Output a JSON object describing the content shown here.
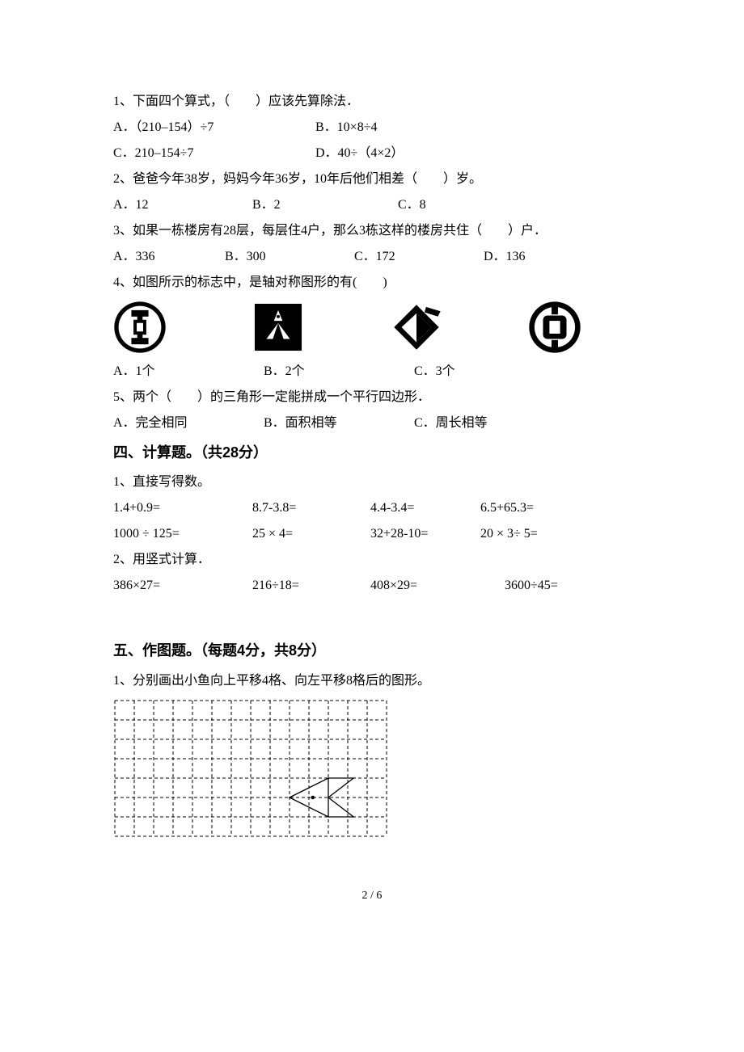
{
  "q1": {
    "stem": "1、下面四个算式，（　　）应该先算除法．",
    "A": "A．（210‒154）÷7",
    "B": "B．10×8÷4",
    "C": "C．210‒154÷7",
    "D": "D．40÷（4×2）"
  },
  "q2": {
    "stem": "2、爸爸今年38岁，妈妈今年36岁，10年后他们相差（　　）岁。",
    "A": "A．12",
    "B": "B．2",
    "C": "C．8"
  },
  "q3": {
    "stem": "3、如果一栋楼房有28层，每层住4户，那么3栋这样的楼房共住（　　）户．",
    "A": "A．336",
    "B": "B．300",
    "C": "C．172",
    "D": "D．136"
  },
  "q4": {
    "stem": "4、如图所示的标志中，是轴对称图形的有(　　)",
    "A": "A．1个",
    "B": "B．2个",
    "C": "C．3个"
  },
  "q5": {
    "stem": "5、两个（　　）的三角形一定能拼成一个平行四边形．",
    "A": "A．完全相同",
    "B": "B．面积相等",
    "C": "C．周长相等"
  },
  "section4": {
    "title": "四、计算题。（共28分）",
    "p1": "1、直接写得数。",
    "r1c1": "1.4+0.9=",
    "r1c2": "8.7-3.8=",
    "r1c3": "4.4-3.4=",
    "r1c4": "6.5+65.3=",
    "r2c1": "1000 ÷ 125=",
    "r2c2": "25 × 4=",
    "r2c3": "32+28-10=",
    "r2c4": "20 × 3÷ 5=",
    "p2": "2、用竖式计算．",
    "r3c1": "386×27=",
    "r3c2": "216÷18=",
    "r3c3": "408×29=",
    "r3c4": "3600÷45="
  },
  "section5": {
    "title": "五、作图题。（每题4分，共8分）",
    "p1": "1、分别画出小鱼向上平移4格、向左平移8格后的图形。"
  },
  "grid": {
    "cols": 14,
    "rows": 7,
    "cell": 24,
    "border_color": "#000000",
    "dash": "4,3",
    "fish": {
      "body": [
        [
          9,
          5
        ],
        [
          11,
          4
        ],
        [
          11,
          6
        ]
      ],
      "tail": [
        [
          11,
          4
        ],
        [
          12.3,
          4
        ],
        [
          11,
          5
        ],
        [
          12.3,
          6
        ],
        [
          11,
          6
        ]
      ],
      "eye": [
        10.2,
        5
      ],
      "eye_r": 2.3,
      "stroke": "#000000",
      "stroke_width": 1.3
    }
  },
  "logos": {
    "fg": "#000000",
    "bg": "#ffffff"
  },
  "pager": "2 / 6"
}
